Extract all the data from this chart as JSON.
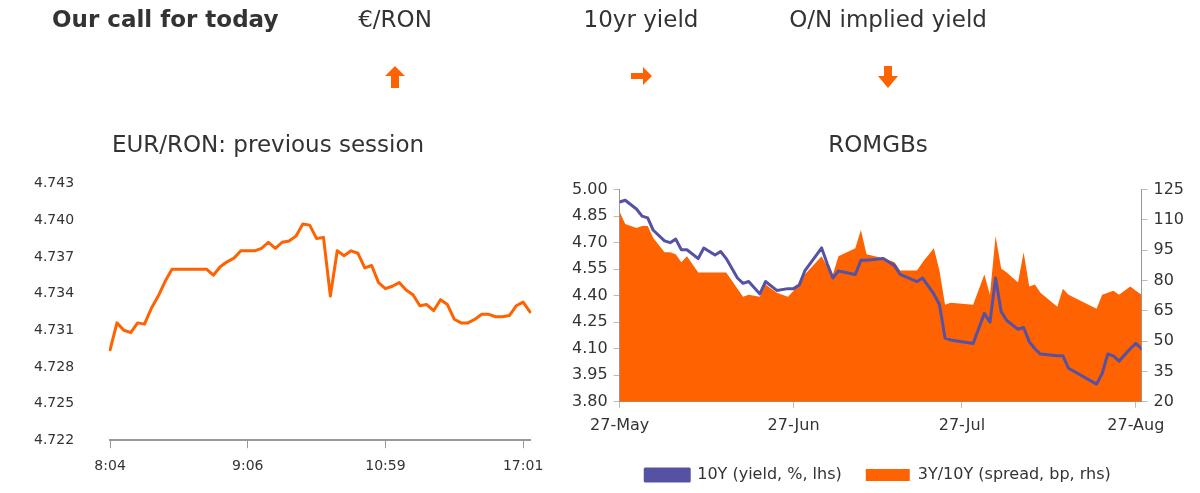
{
  "chart_data": [
    {
      "type": "other",
      "title": "Our call for today",
      "annotations": [
        "€/RON",
        "10yr yield",
        "O/N implied yield"
      ]
    },
    {
      "type": "line",
      "title": "EUR/RON: previous session",
      "grid": false,
      "marker": "none",
      "line_style": "solid",
      "categories": [
        "8:04",
        null,
        null,
        null,
        null,
        null,
        null,
        null,
        null,
        null,
        null,
        null,
        null,
        null,
        null,
        null,
        null,
        null,
        null,
        null,
        "9:06",
        null,
        null,
        null,
        null,
        null,
        null,
        null,
        null,
        null,
        null,
        null,
        null,
        null,
        null,
        null,
        null,
        null,
        null,
        null,
        "10:59",
        null,
        null,
        null,
        null,
        null,
        null,
        null,
        null,
        null,
        null,
        null,
        null,
        null,
        null,
        null,
        null,
        null,
        null,
        null,
        "17:01",
        null
      ],
      "series": [
        {
          "color": "#ff6200",
          "values": [
            4.7294,
            4.7316,
            4.731,
            4.7308,
            4.7316,
            4.7315,
            4.7328,
            4.7338,
            4.735,
            4.736,
            4.736,
            4.736,
            4.736,
            4.736,
            4.736,
            4.7355,
            4.7362,
            4.7366,
            4.7369,
            4.7375,
            4.7375,
            4.7375,
            4.7377,
            4.7382,
            4.7377,
            4.7382,
            4.7383,
            4.7387,
            4.7397,
            4.7396,
            4.7385,
            4.7386,
            4.7338,
            4.7375,
            4.7371,
            4.7375,
            4.7373,
            4.7361,
            4.7363,
            4.7349,
            4.7344,
            4.7346,
            4.7349,
            4.7343,
            4.7339,
            4.733,
            4.7331,
            4.7326,
            4.7335,
            4.7331,
            4.7319,
            4.7316,
            4.7316,
            4.7319,
            4.7323,
            4.7323,
            4.7321,
            4.7321,
            4.7322,
            4.733,
            4.7333,
            4.7325
          ]
        }
      ],
      "ylim": [
        4.722,
        4.743
      ],
      "yticks": [
        4.722,
        4.725,
        4.728,
        4.731,
        4.734,
        4.737,
        {
          "value": 4.74,
          "label": "4.740"
        },
        4.743
      ]
    },
    {
      "type": "line",
      "title": "ROMGBs",
      "grid": false,
      "marker": "none",
      "line_style": "solid",
      "legend": "bottom",
      "x": [
        "--05-27",
        "--05-28",
        "--05-30",
        "--05-31",
        "--06-01",
        "--06-02",
        "--06-04",
        "--06-05",
        "--06-06",
        "--06-07",
        "--06-08",
        "--06-10",
        "--06-11",
        "--06-13",
        "--06-14",
        "--06-15",
        "--06-17",
        "--06-18",
        "--06-19",
        "--06-21",
        "--06-22",
        "--06-24",
        "--06-26",
        "--06-27",
        "--06-28",
        "--06-29",
        "--07-02",
        "--07-03",
        "--07-04",
        "--07-05",
        "--07-08",
        "--07-09",
        "--07-10",
        "--07-13",
        "--07-15",
        "--07-16",
        "--07-19",
        "--07-20",
        "--07-22",
        "--07-23",
        "--07-24",
        "--07-25",
        "--07-29",
        "--07-31",
        "--08-01",
        "--08-02",
        "--08-03",
        "--08-04",
        "--08-06",
        "--08-07",
        "--08-08",
        "--08-09",
        "--08-10",
        "--08-13",
        "--08-14",
        "--08-15",
        "--08-20",
        "--08-21",
        "--08-22",
        "--08-23",
        "--08-24",
        "--08-26",
        "--08-27",
        "--08-28"
      ],
      "series": [
        {
          "name": "3Y/10Y (spread, bp, rhs)",
          "type": "area",
          "axis": "y2",
          "color": "#ff6200",
          "values": [
            114,
            108,
            106,
            107,
            107,
            101,
            94,
            94,
            93,
            89,
            92,
            84,
            84,
            84,
            84,
            84,
            76,
            72,
            73,
            72,
            78,
            74,
            72,
            75,
            79,
            83,
            92,
            87,
            83,
            92,
            96,
            105,
            93,
            91,
            89,
            85,
            85,
            89,
            96,
            85,
            68,
            69,
            68,
            83,
            73,
            102,
            86,
            84,
            79,
            94,
            77,
            78,
            74,
            67,
            76,
            73,
            66,
            73,
            74,
            75,
            73,
            77,
            75,
            73
          ]
        },
        {
          "name": "10Y (yield, %, lhs)",
          "type": "line",
          "color": "#5652a3",
          "values": [
            4.93,
            4.94,
            4.89,
            4.85,
            4.84,
            4.77,
            4.71,
            4.7,
            4.72,
            4.66,
            4.66,
            4.61,
            4.67,
            4.63,
            4.65,
            4.61,
            4.5,
            4.47,
            4.48,
            4.41,
            4.48,
            4.43,
            4.44,
            4.44,
            4.46,
            4.54,
            4.67,
            4.58,
            4.5,
            4.54,
            4.52,
            4.6,
            4.6,
            4.61,
            4.57,
            4.52,
            4.48,
            4.5,
            4.41,
            4.35,
            4.16,
            4.15,
            4.13,
            4.3,
            4.25,
            4.5,
            4.31,
            4.26,
            4.21,
            4.22,
            4.14,
            4.1,
            4.07,
            4.06,
            4.06,
            3.99,
            3.9,
            3.96,
            4.07,
            4.06,
            4.03,
            4.1,
            4.13,
            4.1
          ]
        }
      ],
      "xlim": [
        "--05-27",
        "--08-28"
      ],
      "xticks": [
        {
          "value": "--05-27",
          "label": "27-May"
        },
        {
          "value": "--06-27",
          "label": "27-Jun"
        },
        {
          "value": "--07-27",
          "label": "27-Jul"
        },
        {
          "value": "--08-27",
          "label": "27-Aug"
        }
      ],
      "ylim": [
        3.8,
        5.0
      ],
      "yticks": [
        {
          "value": 3.8,
          "label": "3.80"
        },
        3.95,
        {
          "value": 4.1,
          "label": "4.10"
        },
        4.25,
        {
          "value": 4.4,
          "label": "4.40"
        },
        4.55,
        {
          "value": 4.7,
          "label": "4.70"
        },
        4.85,
        {
          "value": 5.0,
          "label": "5.00"
        }
      ],
      "y2lim": [
        20,
        125
      ],
      "y2ticks": [
        20,
        35,
        50,
        65,
        80,
        95,
        110,
        125
      ]
    }
  ]
}
